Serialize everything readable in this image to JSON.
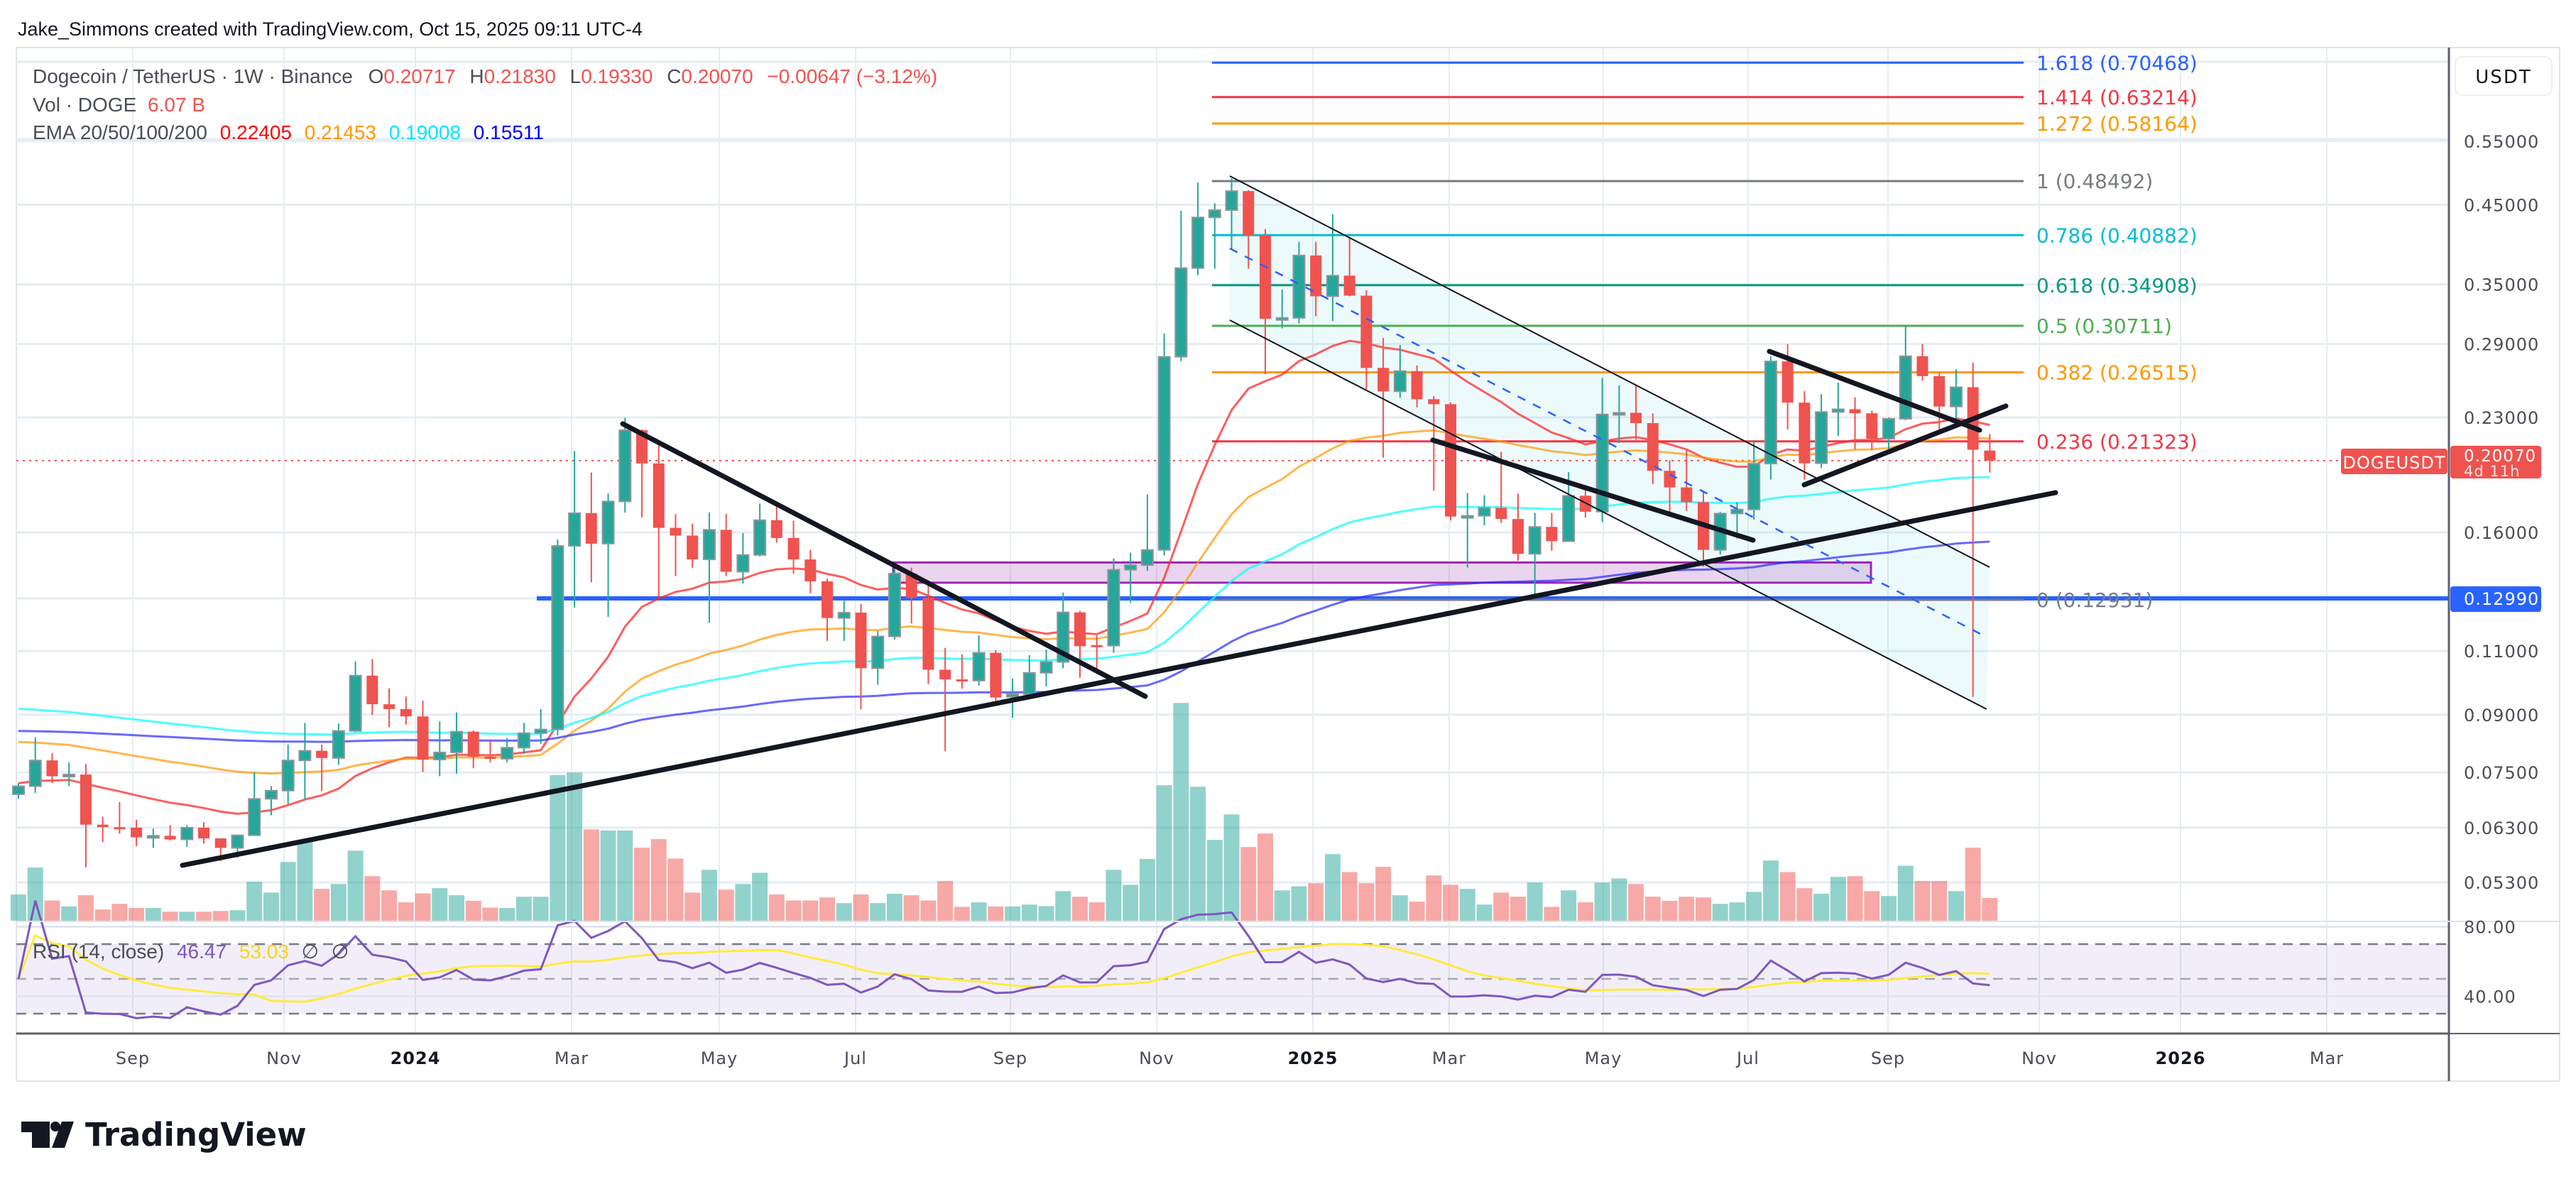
{
  "header": {
    "attribution": "Jake_Simmons created with TradingView.com, Oct 15, 2025 09:11 UTC-4"
  },
  "legend": {
    "symbol": "Dogecoin / TetherUS · 1W · Binance",
    "o_label": "O",
    "o": "0.20717",
    "h_label": "H",
    "h": "0.21830",
    "l_label": "L",
    "l": "0.19330",
    "c_label": "C",
    "c": "0.20070",
    "change": "−0.00647 (−3.12%)",
    "vol_label": "Vol · DOGE",
    "vol": "6.07 B",
    "ema_label": "EMA 20/50/100/200",
    "ema20": "0.22405",
    "ema50": "0.21453",
    "ema100": "0.19008",
    "ema200": "0.15511"
  },
  "rsi_legend": {
    "label": "RSI (14, close)",
    "value": "46.47",
    "ma": "53.03",
    "na1": "∅",
    "na2": "∅"
  },
  "price_axis": {
    "currency": "USDT",
    "ticks": [
      "0.55000",
      "0.45000",
      "0.35000",
      "0.29000",
      "0.23000",
      "0.16000",
      "0.11000",
      "0.09000",
      "0.07500",
      "0.06300",
      "0.05300"
    ],
    "last_price": "0.20070",
    "countdown": "4d 11h",
    "hline_price": "0.12990",
    "rsi_ticks": [
      "80.00",
      "40.00"
    ]
  },
  "symbol_tag": "DOGEUSDT",
  "time_axis": [
    "Sep",
    "Nov",
    "2024",
    "Mar",
    "May",
    "Jul",
    "Sep",
    "Nov",
    "2025",
    "Mar",
    "May",
    "Jul",
    "Sep",
    "Nov",
    "2026",
    "Mar"
  ],
  "fib_levels": [
    {
      "label": "1.618 (0.70468)",
      "price": 0.70468,
      "color": "#2962ff"
    },
    {
      "label": "1.414 (0.63214)",
      "price": 0.63214,
      "color": "#f23645"
    },
    {
      "label": "1.272 (0.58164)",
      "price": 0.58164,
      "color": "#ff9800"
    },
    {
      "label": "1 (0.48492)",
      "price": 0.48492,
      "color": "#787b86"
    },
    {
      "label": "0.786 (0.40882)",
      "price": 0.40882,
      "color": "#00bcd4"
    },
    {
      "label": "0.618 (0.34908)",
      "price": 0.34908,
      "color": "#089981"
    },
    {
      "label": "0.5 (0.30711)",
      "price": 0.30711,
      "color": "#4caf50"
    },
    {
      "label": "0.382 (0.26515)",
      "price": 0.26515,
      "color": "#ff9800"
    },
    {
      "label": "0.236 (0.21323)",
      "price": 0.21323,
      "color": "#f23645"
    },
    {
      "label": "0 (0.12931)",
      "price": 0.12931,
      "color": "#787b86"
    }
  ],
  "colors": {
    "up": "#26a69a",
    "down": "#ef5350",
    "ema20": "#ff3b3b",
    "ema50": "#ff9800",
    "ema100": "#00ffff",
    "ema200": "#0000ff",
    "rsi": "#7e57c2",
    "rsi_ma": "#ffeb3b",
    "hline": "#2962ff",
    "zone": "#9c27b0"
  },
  "logo": {
    "text": "TradingView"
  },
  "chart_data": {
    "type": "candlestick",
    "interval": "1W",
    "y_scale": "log",
    "ylim": [
      0.046,
      0.8
    ],
    "ohlc": [
      [
        0.07,
        0.0725,
        0.069,
        0.0718
      ],
      [
        0.0718,
        0.0838,
        0.0703,
        0.0779
      ],
      [
        0.0779,
        0.0797,
        0.0725,
        0.0741
      ],
      [
        0.0741,
        0.0774,
        0.0718,
        0.0745
      ],
      [
        0.0745,
        0.077,
        0.0556,
        0.0636
      ],
      [
        0.0636,
        0.0652,
        0.0602,
        0.0631
      ],
      [
        0.0631,
        0.0683,
        0.0618,
        0.063
      ],
      [
        0.063,
        0.0646,
        0.0594,
        0.0611
      ],
      [
        0.0611,
        0.0628,
        0.0591,
        0.0614
      ],
      [
        0.0614,
        0.0635,
        0.0605,
        0.0607
      ],
      [
        0.0607,
        0.0635,
        0.0593,
        0.063
      ],
      [
        0.063,
        0.0641,
        0.0599,
        0.0609
      ],
      [
        0.0609,
        0.0609,
        0.0567,
        0.0591
      ],
      [
        0.0591,
        0.0616,
        0.0573,
        0.0615
      ],
      [
        0.0615,
        0.0751,
        0.0615,
        0.069
      ],
      [
        0.069,
        0.0718,
        0.0655,
        0.0708
      ],
      [
        0.0708,
        0.0819,
        0.0679,
        0.0779
      ],
      [
        0.0779,
        0.0877,
        0.0689,
        0.0803
      ],
      [
        0.0803,
        0.0819,
        0.0707,
        0.0785
      ],
      [
        0.0785,
        0.0875,
        0.0768,
        0.0855
      ],
      [
        0.0855,
        0.1065,
        0.0852,
        0.1018
      ],
      [
        0.1018,
        0.1072,
        0.0899,
        0.093
      ],
      [
        0.093,
        0.0978,
        0.0865,
        0.0916
      ],
      [
        0.0916,
        0.0953,
        0.0872,
        0.0895
      ],
      [
        0.0895,
        0.0941,
        0.0751,
        0.0781
      ],
      [
        0.0781,
        0.0881,
        0.0741,
        0.0799
      ],
      [
        0.0799,
        0.0906,
        0.0747,
        0.0853
      ],
      [
        0.0853,
        0.0856,
        0.076,
        0.0788
      ],
      [
        0.0788,
        0.083,
        0.0774,
        0.0783
      ],
      [
        0.0783,
        0.0836,
        0.0774,
        0.0811
      ],
      [
        0.0811,
        0.0877,
        0.0795,
        0.0849
      ],
      [
        0.0849,
        0.0916,
        0.0821,
        0.0859
      ],
      [
        0.0859,
        0.1564,
        0.0843,
        0.1533
      ],
      [
        0.1533,
        0.2069,
        0.1262,
        0.17
      ],
      [
        0.17,
        0.1933,
        0.1367,
        0.1544
      ],
      [
        0.1544,
        0.1809,
        0.1225,
        0.1764
      ],
      [
        0.1764,
        0.2297,
        0.1703,
        0.2209
      ],
      [
        0.2209,
        0.2215,
        0.1678,
        0.1989
      ],
      [
        0.1989,
        0.2106,
        0.1303,
        0.1623
      ],
      [
        0.1623,
        0.1695,
        0.1394,
        0.1584
      ],
      [
        0.1584,
        0.1645,
        0.1431,
        0.1469
      ],
      [
        0.1469,
        0.1703,
        0.1203,
        0.1613
      ],
      [
        0.1613,
        0.1695,
        0.1394,
        0.1413
      ],
      [
        0.1413,
        0.1597,
        0.1361,
        0.149
      ],
      [
        0.149,
        0.1753,
        0.1483,
        0.1663
      ],
      [
        0.1663,
        0.1736,
        0.1549,
        0.1572
      ],
      [
        0.1572,
        0.166,
        0.1405,
        0.1469
      ],
      [
        0.1469,
        0.1514,
        0.132,
        0.1371
      ],
      [
        0.1371,
        0.1383,
        0.1136,
        0.1221
      ],
      [
        0.1221,
        0.1289,
        0.1136,
        0.1242
      ],
      [
        0.1242,
        0.1276,
        0.0915,
        0.1042
      ],
      [
        0.1042,
        0.1172,
        0.0989,
        0.1152
      ],
      [
        0.1152,
        0.1445,
        0.1141,
        0.1405
      ],
      [
        0.1405,
        0.1431,
        0.12,
        0.1301
      ],
      [
        0.1301,
        0.1353,
        0.0991,
        0.1037
      ],
      [
        0.1037,
        0.1111,
        0.0802,
        0.1006
      ],
      [
        0.1006,
        0.1089,
        0.0977,
        0.1002
      ],
      [
        0.1002,
        0.1156,
        0.0986,
        0.1094
      ],
      [
        0.1094,
        0.1103,
        0.0941,
        0.095
      ],
      [
        0.0952,
        0.1009,
        0.0891,
        0.096
      ],
      [
        0.096,
        0.1086,
        0.096,
        0.1027
      ],
      [
        0.1027,
        0.1105,
        0.0984,
        0.1063
      ],
      [
        0.1063,
        0.1323,
        0.1042,
        0.1243
      ],
      [
        0.1243,
        0.1248,
        0.1011,
        0.1117
      ],
      [
        0.1121,
        0.1156,
        0.1032,
        0.1119
      ],
      [
        0.1119,
        0.1473,
        0.1094,
        0.1422
      ],
      [
        0.1422,
        0.15,
        0.1282,
        0.1443
      ],
      [
        0.1443,
        0.1803,
        0.1417,
        0.1514
      ],
      [
        0.1514,
        0.2996,
        0.1488,
        0.2785
      ],
      [
        0.2785,
        0.4416,
        0.2746,
        0.3685
      ],
      [
        0.3685,
        0.4827,
        0.3604,
        0.4324
      ],
      [
        0.4324,
        0.4522,
        0.3678,
        0.4425
      ],
      [
        0.4425,
        0.4891,
        0.3913,
        0.4699
      ],
      [
        0.4699,
        0.4713,
        0.3678,
        0.4085
      ],
      [
        0.4085,
        0.4167,
        0.2636,
        0.314
      ],
      [
        0.314,
        0.3443,
        0.3047,
        0.3149
      ],
      [
        0.3149,
        0.4004,
        0.3096,
        0.3835
      ],
      [
        0.3835,
        0.4004,
        0.3165,
        0.3371
      ],
      [
        0.3371,
        0.4368,
        0.3118,
        0.3598
      ],
      [
        0.3598,
        0.4066,
        0.3371,
        0.3378
      ],
      [
        0.3378,
        0.3437,
        0.2515,
        0.2689
      ],
      [
        0.2689,
        0.2956,
        0.2025,
        0.2497
      ],
      [
        0.2497,
        0.2891,
        0.2447,
        0.2662
      ],
      [
        0.2662,
        0.271,
        0.2374,
        0.2436
      ],
      [
        0.2436,
        0.246,
        0.1826,
        0.2398
      ],
      [
        0.2398,
        0.2412,
        0.1661,
        0.1682
      ],
      [
        0.1682,
        0.1812,
        0.1432,
        0.1686
      ],
      [
        0.1686,
        0.1799,
        0.1636,
        0.1729
      ],
      [
        0.1729,
        0.2064,
        0.1649,
        0.1669
      ],
      [
        0.1669,
        0.1808,
        0.1463,
        0.1495
      ],
      [
        0.1495,
        0.1701,
        0.13,
        0.1628
      ],
      [
        0.1628,
        0.1701,
        0.151,
        0.1556
      ],
      [
        0.1556,
        0.1935,
        0.1556,
        0.1796
      ],
      [
        0.1796,
        0.1848,
        0.1677,
        0.1708
      ],
      [
        0.1708,
        0.2605,
        0.1652,
        0.2322
      ],
      [
        0.2322,
        0.2545,
        0.2121,
        0.2334
      ],
      [
        0.2334,
        0.2553,
        0.2142,
        0.2259
      ],
      [
        0.2259,
        0.233,
        0.1863,
        0.1943
      ],
      [
        0.1943,
        0.2008,
        0.169,
        0.1844
      ],
      [
        0.1844,
        0.2076,
        0.1712,
        0.176
      ],
      [
        0.176,
        0.1821,
        0.1436,
        0.1514
      ],
      [
        0.1514,
        0.1707,
        0.1492,
        0.1698
      ],
      [
        0.1698,
        0.1759,
        0.1569,
        0.172
      ],
      [
        0.172,
        0.2142,
        0.1666,
        0.1988
      ],
      [
        0.1988,
        0.279,
        0.189,
        0.2745
      ],
      [
        0.2745,
        0.29,
        0.2215,
        0.241
      ],
      [
        0.241,
        0.25,
        0.189,
        0.199
      ],
      [
        0.199,
        0.2475,
        0.196,
        0.234
      ],
      [
        0.234,
        0.2568,
        0.217,
        0.236
      ],
      [
        0.236,
        0.245,
        0.208,
        0.233
      ],
      [
        0.233,
        0.235,
        0.2075,
        0.215
      ],
      [
        0.215,
        0.23,
        0.206,
        0.229
      ],
      [
        0.229,
        0.308,
        0.228,
        0.279
      ],
      [
        0.279,
        0.29,
        0.2583,
        0.262
      ],
      [
        0.262,
        0.2647,
        0.2215,
        0.238
      ],
      [
        0.238,
        0.2677,
        0.2273,
        0.253
      ],
      [
        0.253,
        0.2735,
        0.0952,
        0.2077
      ],
      [
        0.20717,
        0.2183,
        0.1933,
        0.2007
      ]
    ],
    "volume_billions": [
      7.0,
      14.2,
      5.4,
      3.8,
      6.8,
      3.0,
      4.5,
      3.4,
      3.4,
      2.4,
      2.4,
      2.4,
      2.6,
      2.8,
      10.4,
      7.5,
      15.7,
      21.2,
      8.5,
      9.8,
      18.7,
      11.9,
      8.1,
      4.9,
      7.3,
      8.7,
      6.8,
      5.3,
      3.5,
      3.4,
      6.4,
      6.4,
      38.9,
      39.6,
      24.4,
      24.1,
      24.1,
      19.5,
      21.8,
      16.6,
      7.5,
      13.6,
      8.3,
      9.8,
      12.8,
      7.0,
      5.4,
      5.4,
      6.2,
      4.7,
      7.0,
      4.7,
      7.2,
      6.8,
      5.4,
      10.6,
      3.7,
      4.9,
      3.8,
      3.8,
      4.3,
      3.9,
      7.9,
      6.4,
      4.9,
      13.6,
      9.6,
      16.5,
      36.2,
      58.2,
      35.8,
      21.6,
      28.4,
      19.7,
      23.3,
      8.1,
      9.2,
      10.0,
      17.8,
      13.0,
      10.0,
      14.4,
      6.8,
      5.1,
      12.1,
      9.6,
      8.5,
      4.3,
      7.5,
      6.4,
      10.2,
      3.7,
      8.1,
      4.9,
      10.2,
      11.3,
      9.8,
      6.4,
      5.3,
      6.4,
      6.2,
      4.5,
      4.9,
      7.7,
      16.1,
      13.0,
      8.7,
      7.2,
      11.7,
      11.9,
      7.9,
      6.6,
      14.7,
      10.6,
      10.6,
      7.9,
      19.5,
      6.07
    ],
    "ema_start": {
      "ema20": 0.0725,
      "ema50": 0.0826,
      "ema100": 0.0917,
      "ema200": 0.0855
    },
    "rsi": {
      "period": 14,
      "ma_period": 14,
      "upper": 70,
      "middle": 50,
      "lower": 30
    },
    "horizontal_level": 0.1299,
    "zone": [
      0.1365,
      0.1455
    ]
  }
}
